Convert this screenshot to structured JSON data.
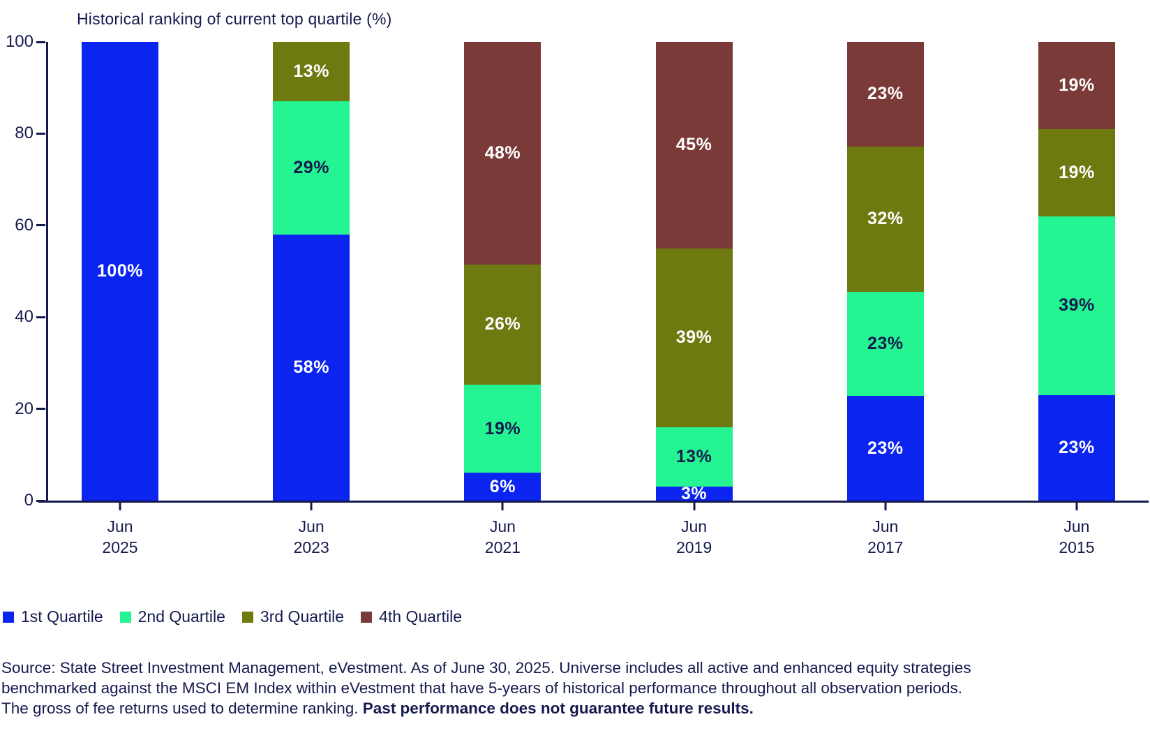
{
  "chart_data": {
    "type": "bar",
    "stacked": true,
    "title": "Historical ranking of current top quartile (%)",
    "categories": [
      {
        "line1": "Jun",
        "line2": "2025"
      },
      {
        "line1": "Jun",
        "line2": "2023"
      },
      {
        "line1": "Jun",
        "line2": "2021"
      },
      {
        "line1": "Jun",
        "line2": "2019"
      },
      {
        "line1": "Jun",
        "line2": "2017"
      },
      {
        "line1": "Jun",
        "line2": "2015"
      }
    ],
    "series": [
      {
        "name": "1st Quartile",
        "color": "#0B24F0",
        "label_color": "#FFFFFF",
        "values": [
          100,
          58,
          6,
          3,
          23,
          23
        ]
      },
      {
        "name": "2nd Quartile",
        "color": "#24F592",
        "label_color": "#151A4E",
        "values": [
          0,
          29,
          19,
          13,
          23,
          39
        ]
      },
      {
        "name": "3rd Quartile",
        "color": "#6E7A10",
        "label_color": "#FFFFFF",
        "values": [
          0,
          13,
          26,
          39,
          32,
          19
        ]
      },
      {
        "name": "4th Quartile",
        "color": "#7A3B38",
        "label_color": "#FFFFFF",
        "values": [
          0,
          0,
          48,
          45,
          23,
          19
        ]
      }
    ],
    "value_suffix": "%",
    "ylim": [
      0,
      100
    ],
    "yticks": [
      0,
      20,
      40,
      60,
      80,
      100
    ],
    "xlabel": "",
    "ylabel": "",
    "grid": false,
    "legend_position": "bottom-left"
  },
  "colors": {
    "text": "#151A4E",
    "axis": "#151A4E"
  },
  "footer": {
    "line1": "Source: State Street Investment Management, eVestment. As of June 30, 2025. Universe includes all active and enhanced equity strategies",
    "line2": "benchmarked against the MSCI EM Index within eVestment that have 5-years of historical performance throughout all observation periods.",
    "line3_regular": "The gross of fee returns used to determine ranking. ",
    "line3_bold": "Past performance does not guarantee future results."
  }
}
